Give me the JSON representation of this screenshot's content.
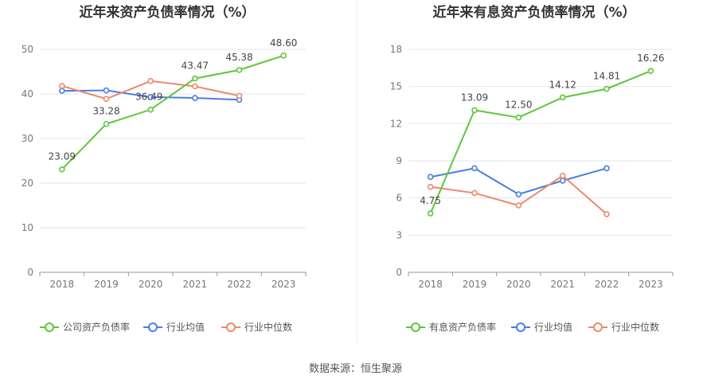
{
  "source": "数据来源：恒生聚源",
  "chart_data": [
    {
      "type": "line",
      "title": "近年来资产负债率情况（%）",
      "xlabel": "",
      "ylabel": "",
      "x": [
        "2018",
        "2019",
        "2020",
        "2021",
        "2022",
        "2023"
      ],
      "ylim": [
        0,
        50
      ],
      "yticks": [
        0,
        10,
        20,
        30,
        40,
        50
      ],
      "grid": true,
      "legend_position": "bottom",
      "series": [
        {
          "name": "公司资产负债率",
          "color": "#5cc83a",
          "values": [
            23.09,
            33.28,
            36.49,
            43.47,
            45.38,
            48.6
          ],
          "labels": [
            "23.09",
            "33.28",
            "36.49",
            "43.47",
            "45.38",
            "48.60"
          ]
        },
        {
          "name": "行业均值",
          "color": "#4a7fe0",
          "values": [
            40.7,
            40.8,
            39.3,
            39.1,
            38.7,
            null
          ]
        },
        {
          "name": "行业中位数",
          "color": "#f0886a",
          "values": [
            41.8,
            38.9,
            42.9,
            41.7,
            39.6,
            null
          ]
        }
      ]
    },
    {
      "type": "line",
      "title": "近年来有息资产负债率情况（%）",
      "xlabel": "",
      "ylabel": "",
      "x": [
        "2018",
        "2019",
        "2020",
        "2021",
        "2022",
        "2023"
      ],
      "ylim": [
        0,
        18
      ],
      "yticks": [
        0,
        3,
        6,
        9,
        12,
        15,
        18
      ],
      "grid": true,
      "legend_position": "bottom",
      "series": [
        {
          "name": "有息资产负债率",
          "color": "#5cc83a",
          "values": [
            4.75,
            13.09,
            12.5,
            14.12,
            14.81,
            16.26
          ],
          "labels": [
            "4.75",
            "13.09",
            "12.50",
            "14.12",
            "14.81",
            "16.26"
          ]
        },
        {
          "name": "行业均值",
          "color": "#4a7fe0",
          "values": [
            7.7,
            8.4,
            6.3,
            7.4,
            8.4,
            null
          ]
        },
        {
          "name": "行业中位数",
          "color": "#f0886a",
          "values": [
            6.9,
            6.4,
            5.4,
            7.8,
            4.7,
            null
          ]
        }
      ]
    }
  ]
}
